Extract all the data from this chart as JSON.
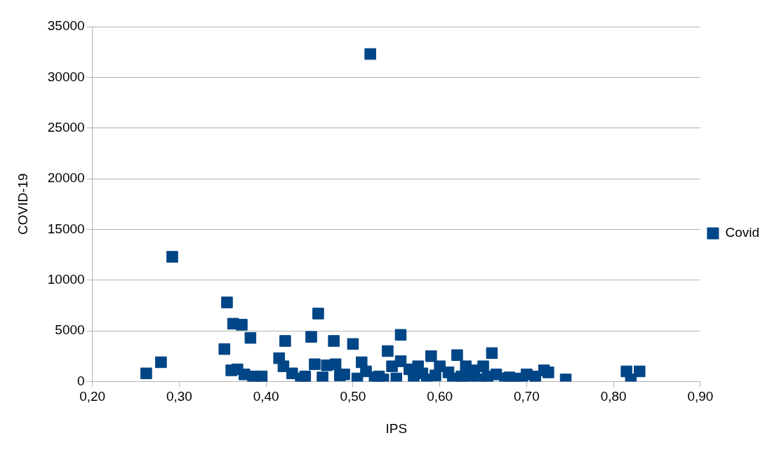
{
  "chart_data": {
    "type": "scatter",
    "xlabel": "IPS",
    "ylabel": "COVID-19",
    "xlim": [
      0.2,
      0.9
    ],
    "xticks": [
      {
        "value": 0.2,
        "label": "0,20"
      },
      {
        "value": 0.3,
        "label": "0,30"
      },
      {
        "value": 0.4,
        "label": "0,40"
      },
      {
        "value": 0.5,
        "label": "0,50"
      },
      {
        "value": 0.6,
        "label": "0,60"
      },
      {
        "value": 0.7,
        "label": "0,70"
      },
      {
        "value": 0.8,
        "label": "0,80"
      },
      {
        "value": 0.9,
        "label": "0,90"
      }
    ],
    "ylim": [
      0,
      35000
    ],
    "yticks": [
      0,
      5000,
      10000,
      15000,
      20000,
      25000,
      30000,
      35000
    ],
    "grid": "y",
    "legend": "right",
    "marker": "square",
    "series": [
      {
        "name": "Covid",
        "color": "#004586",
        "x": [
          0.262,
          0.279,
          0.292,
          0.355,
          0.352,
          0.362,
          0.372,
          0.382,
          0.36,
          0.367,
          0.375,
          0.385,
          0.395,
          0.415,
          0.422,
          0.42,
          0.43,
          0.44,
          0.452,
          0.46,
          0.456,
          0.47,
          0.478,
          0.48,
          0.49,
          0.5,
          0.51,
          0.52,
          0.515,
          0.53,
          0.54,
          0.545,
          0.555,
          0.555,
          0.565,
          0.575,
          0.58,
          0.59,
          0.6,
          0.61,
          0.62,
          0.625,
          0.63,
          0.64,
          0.65,
          0.66,
          0.665,
          0.68,
          0.69,
          0.7,
          0.71,
          0.72,
          0.725,
          0.745,
          0.815,
          0.82,
          0.83,
          0.445,
          0.465,
          0.485,
          0.505,
          0.525,
          0.535,
          0.55,
          0.57,
          0.585,
          0.595,
          0.615,
          0.635,
          0.645,
          0.655,
          0.675,
          0.695
        ],
        "values": [
          800,
          1900,
          12300,
          7800,
          3200,
          5700,
          5600,
          4300,
          1100,
          1200,
          700,
          500,
          500,
          2300,
          4000,
          1500,
          800,
          300,
          4400,
          6700,
          1700,
          1600,
          4000,
          1700,
          700,
          3700,
          1900,
          32300,
          1000,
          500,
          3000,
          1500,
          4600,
          2000,
          1200,
          1500,
          800,
          2500,
          1500,
          900,
          2600,
          500,
          1500,
          1100,
          1500,
          2800,
          700,
          400,
          300,
          700,
          500,
          1100,
          900,
          200,
          1000,
          200,
          1000,
          500,
          400,
          600,
          300,
          400,
          200,
          300,
          400,
          200,
          600,
          300,
          400,
          200,
          500,
          300,
          200
        ]
      }
    ]
  }
}
